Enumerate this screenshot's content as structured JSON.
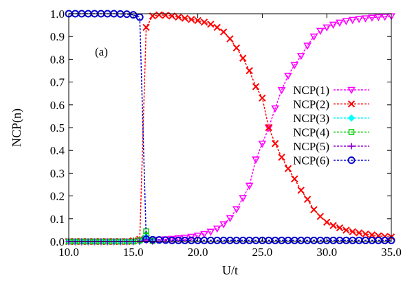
{
  "chart_data": {
    "type": "line",
    "title": "",
    "panel_label": "(a)",
    "xlabel": "U/t",
    "ylabel": "NCP(n)",
    "xlim": [
      10,
      35
    ],
    "ylim": [
      0,
      1
    ],
    "xticks": [
      10,
      15,
      20,
      25,
      30,
      35
    ],
    "xtick_labels": [
      "10.0",
      "15.0",
      "20.0",
      "25.0",
      "30.0",
      "35.0"
    ],
    "yticks": [
      0,
      0.1,
      0.2,
      0.3,
      0.4,
      0.5,
      0.6,
      0.7,
      0.8,
      0.9,
      1.0
    ],
    "ytick_labels": [
      "0.0",
      "0.1",
      "0.2",
      "0.3",
      "0.4",
      "0.5",
      "0.6",
      "0.7",
      "0.8",
      "0.9",
      "1.0"
    ],
    "grid": false,
    "legend_position": "right",
    "series": [
      {
        "name": "NCP(1)",
        "color": "#ff00ff",
        "marker": "triangle-down",
        "x": [
          10,
          10.5,
          11,
          11.5,
          12,
          12.5,
          13,
          13.5,
          14,
          14.5,
          15,
          15.5,
          16,
          16.5,
          17,
          17.5,
          18,
          18.5,
          19,
          19.5,
          20,
          20.5,
          21,
          21.5,
          22,
          22.5,
          23,
          23.5,
          24,
          24.5,
          25,
          25.5,
          26,
          26.5,
          27,
          27.5,
          28,
          28.5,
          29,
          29.5,
          30,
          30.5,
          31,
          31.5,
          32,
          32.5,
          33,
          33.5,
          34,
          34.5,
          35
        ],
        "y": [
          0.0,
          0.0,
          0.0,
          0.0,
          0.0,
          0.0,
          0.0,
          0.0,
          0.0,
          0.0,
          0.0,
          0.003,
          0.006,
          0.007,
          0.008,
          0.01,
          0.012,
          0.014,
          0.017,
          0.021,
          0.026,
          0.033,
          0.043,
          0.057,
          0.076,
          0.103,
          0.142,
          0.191,
          0.245,
          0.36,
          0.43,
          0.5,
          0.585,
          0.665,
          0.728,
          0.775,
          0.815,
          0.86,
          0.9,
          0.925,
          0.94,
          0.952,
          0.961,
          0.968,
          0.973,
          0.977,
          0.98,
          0.983,
          0.985,
          0.987,
          0.989
        ]
      },
      {
        "name": "NCP(2)",
        "color": "#ff0000",
        "marker": "x",
        "x": [
          10,
          10.5,
          11,
          11.5,
          12,
          12.5,
          13,
          13.5,
          14,
          14.5,
          15,
          15.5,
          16,
          16.5,
          17,
          17.5,
          18,
          18.5,
          19,
          19.5,
          20,
          20.5,
          21,
          21.5,
          22,
          22.5,
          23,
          23.5,
          24,
          24.5,
          25,
          25.5,
          26,
          26.5,
          27,
          27.5,
          28,
          28.5,
          29,
          29.5,
          30,
          30.5,
          31,
          31.5,
          32,
          32.5,
          33,
          33.5,
          34,
          34.5,
          35
        ],
        "y": [
          0.0,
          0.0,
          0.0,
          0.0,
          0.0,
          0.0,
          0.0,
          0.0,
          0.0,
          0.0,
          0.003,
          0.01,
          0.94,
          0.99,
          0.995,
          0.993,
          0.99,
          0.985,
          0.98,
          0.975,
          0.97,
          0.963,
          0.954,
          0.94,
          0.92,
          0.89,
          0.85,
          0.805,
          0.75,
          0.68,
          0.63,
          0.5,
          0.43,
          0.37,
          0.32,
          0.275,
          0.225,
          0.185,
          0.14,
          0.11,
          0.085,
          0.07,
          0.06,
          0.05,
          0.043,
          0.038,
          0.033,
          0.029,
          0.025,
          0.022,
          0.02
        ]
      },
      {
        "name": "NCP(3)",
        "color": "#00ffff",
        "marker": "diamond",
        "x": [
          10,
          10.5,
          11,
          11.5,
          12,
          12.5,
          13,
          13.5,
          14,
          14.5,
          15,
          15.5,
          16,
          16.5
        ],
        "y": [
          0.0,
          0.0,
          0.0,
          0.0,
          0.0,
          0.0,
          0.0,
          0.0,
          0.0,
          0.0,
          0.0,
          0.0,
          0.02,
          0.003
        ]
      },
      {
        "name": "NCP(4)",
        "color": "#00cc00",
        "marker": "square",
        "x": [
          10,
          10.5,
          11,
          11.5,
          12,
          12.5,
          13,
          13.5,
          14,
          14.5,
          15,
          15.5,
          16,
          16.5
        ],
        "y": [
          0.0,
          0.0,
          0.0,
          0.0,
          0.0,
          0.0,
          0.0,
          0.0,
          0.0,
          0.0,
          0.0,
          0.005,
          0.045,
          0.003
        ]
      },
      {
        "name": "NCP(5)",
        "color": "#9400d3",
        "marker": "plus",
        "x": [
          10,
          10.5,
          11,
          11.5,
          12,
          12.5,
          13,
          13.5,
          14,
          14.5,
          15,
          15.5,
          16,
          16.5
        ],
        "y": [
          0.0,
          0.0,
          0.0,
          0.0,
          0.0,
          0.0,
          0.0,
          0.0,
          0.0,
          0.0,
          0.0,
          0.0,
          0.01,
          0.0
        ]
      },
      {
        "name": "NCP(6)",
        "color": "#0000cc",
        "marker": "circle",
        "x": [
          10,
          10.5,
          11,
          11.5,
          12,
          12.5,
          13,
          13.5,
          14,
          14.5,
          15,
          15.5,
          16,
          16.5,
          17,
          17.5,
          18,
          18.5,
          19,
          19.5,
          20,
          20.5,
          21,
          21.5,
          22,
          22.5,
          23,
          23.5,
          24,
          24.5,
          25,
          25.5,
          26,
          26.5,
          27,
          27.5,
          28,
          28.5,
          29,
          29.5,
          30,
          30.5,
          31,
          31.5,
          32,
          32.5,
          33,
          33.5,
          34,
          34.5,
          35
        ],
        "y": [
          1.0,
          1.0,
          1.0,
          1.0,
          1.0,
          1.0,
          1.0,
          1.0,
          0.999,
          0.998,
          0.995,
          0.985,
          0.01,
          0.008,
          0.007,
          0.006,
          0.005,
          0.005,
          0.005,
          0.005,
          0.005,
          0.005,
          0.005,
          0.005,
          0.005,
          0.005,
          0.005,
          0.005,
          0.005,
          0.005,
          0.005,
          0.005,
          0.005,
          0.005,
          0.005,
          0.005,
          0.005,
          0.005,
          0.005,
          0.005,
          0.005,
          0.005,
          0.005,
          0.005,
          0.005,
          0.005,
          0.005,
          0.005,
          0.005,
          0.005,
          0.005
        ]
      }
    ]
  }
}
